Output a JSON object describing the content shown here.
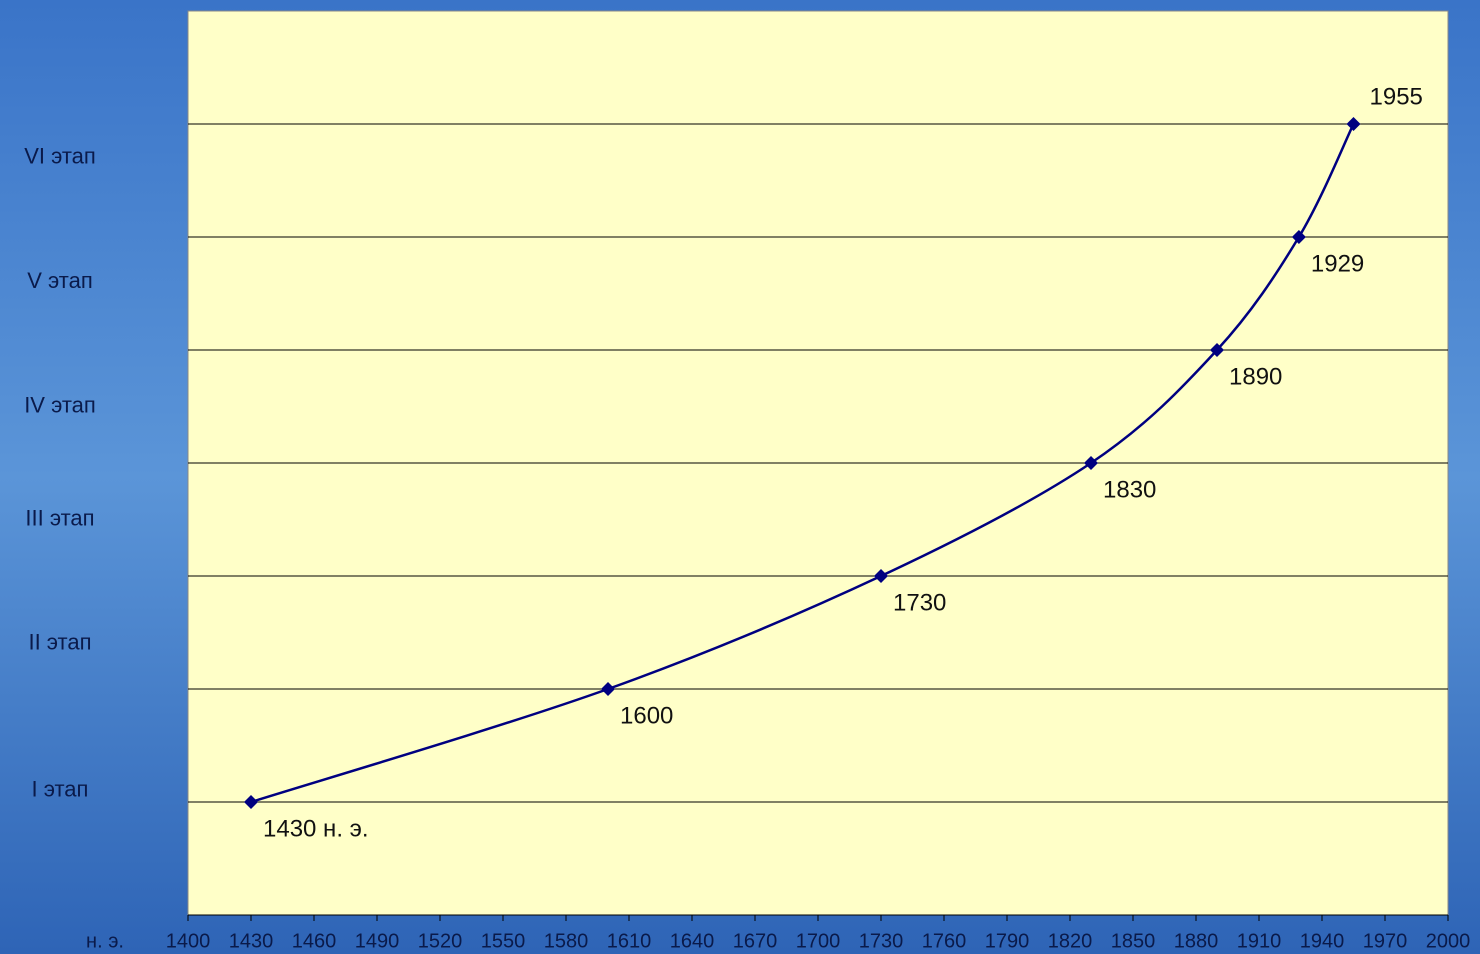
{
  "chart_data": {
    "type": "line",
    "x_label": "н. э.",
    "x": [
      1430,
      1600,
      1730,
      1830,
      1890,
      1929,
      1955
    ],
    "series": [
      {
        "color": "#000080",
        "values": [
          1,
          2,
          3,
          4,
          5,
          6,
          7
        ],
        "value_labels": [
          "1430 н. э.",
          "1600",
          "1730",
          "1830",
          "1890",
          "1929",
          "1955"
        ]
      }
    ],
    "xlim": [
      1400,
      2000
    ],
    "xticks": [
      1400,
      1430,
      1460,
      1490,
      1520,
      1550,
      1580,
      1610,
      1640,
      1670,
      1700,
      1730,
      1760,
      1790,
      1820,
      1850,
      1880,
      1910,
      1940,
      1970,
      2000
    ],
    "ylim": [
      0,
      8
    ],
    "yticks": [
      {
        "value": 1.1,
        "label": "I этап"
      },
      {
        "value": 2.4,
        "label": "II этап"
      },
      {
        "value": 3.5,
        "label": "III этап"
      },
      {
        "value": 4.5,
        "label": "IV этап"
      },
      {
        "value": 5.6,
        "label": "V этап"
      },
      {
        "value": 6.7,
        "label": "VI этап"
      }
    ],
    "ygrid": [
      1,
      2,
      3,
      4,
      5,
      6,
      7
    ],
    "plot_background": "#ffffc8"
  }
}
